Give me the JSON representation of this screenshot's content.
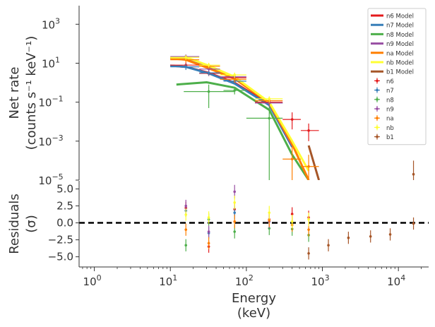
{
  "chart_data": {
    "type": "scatter",
    "x_log": true,
    "xlim": [
      0.63,
      25000
    ],
    "xlabel_line1": "Energy",
    "xlabel_line2": "(keV)",
    "x_ticks": [
      {
        "value": 1,
        "base": "10",
        "exp": "0"
      },
      {
        "value": 10,
        "base": "10",
        "exp": "1"
      },
      {
        "value": 100,
        "base": "10",
        "exp": "2"
      },
      {
        "value": 1000,
        "base": "10",
        "exp": "3"
      },
      {
        "value": 10000,
        "base": "10",
        "exp": "4"
      }
    ],
    "top_panel": {
      "y_log": true,
      "ylim": [
        1e-05,
        9000
      ],
      "ylabel_line1": "Net rate",
      "ylabel_line2": "(counts s⁻¹ keV⁻¹)",
      "y_ticks": [
        {
          "value": 1000,
          "base": "10",
          "exp": "3"
        },
        {
          "value": 10,
          "base": "10",
          "exp": "1"
        },
        {
          "value": 0.1,
          "base": "10",
          "exp": "−1"
        },
        {
          "value": 0.001,
          "base": "10",
          "exp": "−3"
        },
        {
          "value": 1e-05,
          "base": "10",
          "exp": "−5"
        }
      ],
      "legend_position": "top-right",
      "models": [
        {
          "name": "n6 Model",
          "color": "#e41a1c",
          "x": [
            10,
            16,
            32,
            70,
            200,
            400
          ],
          "y": [
            7.5,
            6.5,
            3.2,
            1.0,
            0.08,
            0.0006
          ]
        },
        {
          "name": "n7 Model",
          "color": "#377eb8",
          "x": [
            10,
            16,
            32,
            70,
            200,
            400
          ],
          "y": [
            7.5,
            6.5,
            3.0,
            0.9,
            0.07,
            0.0005
          ]
        },
        {
          "name": "n8 Model",
          "color": "#4daf4a",
          "x": [
            12,
            30,
            70,
            200,
            400,
            660
          ],
          "y": [
            0.8,
            1.05,
            0.55,
            0.04,
            0.0002,
            1e-05
          ]
        },
        {
          "name": "n9 Model",
          "color": "#984ea3",
          "x": [
            10,
            16,
            32,
            70,
            200,
            400
          ],
          "y": [
            18,
            16,
            6.5,
            1.7,
            0.09,
            0.0006
          ]
        },
        {
          "name": "na Model",
          "color": "#ff7f00",
          "x": [
            10,
            16,
            32,
            70,
            200,
            400,
            660
          ],
          "y": [
            18,
            15,
            5.5,
            1.6,
            0.09,
            0.0007,
            1e-05
          ]
        },
        {
          "name": "nb Model",
          "color": "#ffff33",
          "x": [
            10,
            16,
            32,
            70,
            200,
            400,
            660
          ],
          "y": [
            20,
            20,
            7.5,
            2.0,
            0.1,
            0.001,
            3e-05
          ]
        },
        {
          "name": "b1 Model",
          "color": "#a65628",
          "x": [
            660,
            900
          ],
          "y": [
            0.0006,
            1e-05
          ]
        }
      ],
      "data": [
        {
          "name": "n6",
          "color": "#e41a1c",
          "points": [
            {
              "x": 16,
              "xl": 10,
              "xh": 24,
              "y": 8.0,
              "yl": 5.5,
              "yh": 11
            },
            {
              "x": 32,
              "xl": 24,
              "xh": 45,
              "y": 3.0,
              "yl": 2.2,
              "yh": 4.0
            },
            {
              "x": 70,
              "xl": 50,
              "xh": 100,
              "y": 1.8,
              "yl": 1.2,
              "yh": 2.5
            },
            {
              "x": 200,
              "xl": 130,
              "xh": 300,
              "y": 0.1,
              "yl": 0.07,
              "yh": 0.14
            },
            {
              "x": 400,
              "xl": 300,
              "xh": 520,
              "y": 0.013,
              "yl": 0.004,
              "yh": 0.03
            },
            {
              "x": 660,
              "xl": 520,
              "xh": 900,
              "y": 0.0035,
              "yl": 0.001,
              "yh": 0.008
            }
          ]
        },
        {
          "name": "n7",
          "color": "#377eb8",
          "points": [
            {
              "x": 16,
              "xl": 10,
              "xh": 24,
              "y": 6.5,
              "yl": 4.5,
              "yh": 9
            },
            {
              "x": 32,
              "xl": 24,
              "xh": 45,
              "y": 3.2,
              "yl": 2.3,
              "yh": 4.3
            },
            {
              "x": 70,
              "xl": 50,
              "xh": 100,
              "y": 1.2,
              "yl": 0.8,
              "yh": 1.7
            },
            {
              "x": 200,
              "xl": 130,
              "xh": 300,
              "y": 0.09,
              "yl": 0.06,
              "yh": 0.13
            }
          ]
        },
        {
          "name": "n8",
          "color": "#4daf4a",
          "points": [
            {
              "x": 32,
              "xl": 15,
              "xh": 70,
              "y": 0.35,
              "yl": 0.05,
              "yh": 0.8
            },
            {
              "x": 70,
              "xl": 50,
              "xh": 100,
              "y": 0.4,
              "yl": 0.25,
              "yh": 0.6
            },
            {
              "x": 200,
              "xl": 100,
              "xh": 300,
              "y": 0.015,
              "yl": 1e-05,
              "yh": 0.06
            }
          ]
        },
        {
          "name": "n9",
          "color": "#984ea3",
          "points": [
            {
              "x": 16,
              "xl": 10,
              "xh": 24,
              "y": 22,
              "yl": 17,
              "yh": 28
            },
            {
              "x": 32,
              "xl": 24,
              "xh": 45,
              "y": 5.0,
              "yl": 3.8,
              "yh": 6.5
            },
            {
              "x": 70,
              "xl": 45,
              "xh": 100,
              "y": 2.0,
              "yl": 1.4,
              "yh": 2.8
            },
            {
              "x": 200,
              "xl": 130,
              "xh": 300,
              "y": 0.09,
              "yl": 0.06,
              "yh": 0.13
            }
          ]
        },
        {
          "name": "na",
          "color": "#ff7f00",
          "points": [
            {
              "x": 16,
              "xl": 10,
              "xh": 24,
              "y": 15,
              "yl": 11,
              "yh": 20
            },
            {
              "x": 32,
              "xl": 24,
              "xh": 45,
              "y": 7.0,
              "yl": 5.0,
              "yh": 9.5
            },
            {
              "x": 70,
              "xl": 45,
              "xh": 100,
              "y": 1.5,
              "yl": 1.0,
              "yh": 2.2
            },
            {
              "x": 200,
              "xl": 130,
              "xh": 300,
              "y": 0.12,
              "yl": 0.08,
              "yh": 0.17
            },
            {
              "x": 400,
              "xl": 300,
              "xh": 520,
              "y": 0.00012,
              "yl": 1e-05,
              "yh": 0.0005
            },
            {
              "x": 660,
              "xl": 520,
              "xh": 900,
              "y": 5e-05,
              "yl": 1e-05,
              "yh": 0.0002
            }
          ]
        },
        {
          "name": "nb",
          "color": "#ffff33",
          "points": [
            {
              "x": 16,
              "xl": 10,
              "xh": 24,
              "y": 20,
              "yl": 15,
              "yh": 26
            },
            {
              "x": 32,
              "xl": 24,
              "xh": 45,
              "y": 8.0,
              "yl": 6.0,
              "yh": 10.5
            },
            {
              "x": 70,
              "xl": 45,
              "xh": 100,
              "y": 2.5,
              "yl": 1.8,
              "yh": 3.3
            },
            {
              "x": 200,
              "xl": 130,
              "xh": 300,
              "y": 0.15,
              "yl": 0.1,
              "yh": 0.2
            }
          ]
        },
        {
          "name": "b1",
          "color": "#a65628",
          "points": [
            {
              "x": 15800,
              "xl": 15800,
              "xh": 15800,
              "y": 2e-05,
              "yl": 1e-05,
              "yh": 0.0001
            }
          ]
        }
      ]
    },
    "bottom_panel": {
      "ylim": [
        -6.5,
        6.2
      ],
      "ylabel_line1": "Residuals",
      "ylabel_line2": "(σ)",
      "y_ticks": [
        {
          "value": 5.0,
          "label": "5.0"
        },
        {
          "value": 2.5,
          "label": "2.5"
        },
        {
          "value": 0.0,
          "label": "0.0"
        },
        {
          "value": -2.5,
          "label": "−2.5"
        },
        {
          "value": -5.0,
          "label": "−5.0"
        }
      ],
      "zero_line": 0,
      "residuals": [
        {
          "name": "n6",
          "color": "#e41a1c",
          "points": [
            {
              "x": 16,
              "y": 2.2,
              "e": 0.9
            },
            {
              "x": 32,
              "y": -3.5,
              "e": 0.9
            },
            {
              "x": 70,
              "y": 2.0,
              "e": 1.0
            },
            {
              "x": 200,
              "y": 0.5,
              "e": 1.0
            },
            {
              "x": 400,
              "y": 1.3,
              "e": 1.0
            },
            {
              "x": 660,
              "y": 0.8,
              "e": 1.0
            }
          ]
        },
        {
          "name": "n7",
          "color": "#377eb8",
          "points": [
            {
              "x": 16,
              "y": 1.8,
              "e": 0.9
            },
            {
              "x": 32,
              "y": -1.5,
              "e": 0.9
            },
            {
              "x": 70,
              "y": 1.5,
              "e": 1.0
            },
            {
              "x": 200,
              "y": 0.3,
              "e": 1.0
            }
          ]
        },
        {
          "name": "n8",
          "color": "#4daf4a",
          "points": [
            {
              "x": 16,
              "y": -3.3,
              "e": 0.9
            },
            {
              "x": 32,
              "y": 0.5,
              "e": 0.9
            },
            {
              "x": 70,
              "y": -1.3,
              "e": 1.0
            },
            {
              "x": 200,
              "y": -0.8,
              "e": 1.0
            },
            {
              "x": 400,
              "y": -0.9,
              "e": 1.0
            },
            {
              "x": 660,
              "y": -1.8,
              "e": 1.0
            }
          ]
        },
        {
          "name": "n9",
          "color": "#984ea3",
          "points": [
            {
              "x": 16,
              "y": 2.5,
              "e": 0.9
            },
            {
              "x": 32,
              "y": -1.3,
              "e": 0.9
            },
            {
              "x": 70,
              "y": 4.6,
              "e": 1.0
            },
            {
              "x": 200,
              "y": 0.2,
              "e": 1.0
            }
          ]
        },
        {
          "name": "na",
          "color": "#ff7f00",
          "points": [
            {
              "x": 16,
              "y": -1.0,
              "e": 0.9
            },
            {
              "x": 32,
              "y": -3.0,
              "e": 0.9
            },
            {
              "x": 70,
              "y": 0.2,
              "e": 1.0
            },
            {
              "x": 200,
              "y": 0.4,
              "e": 1.0
            },
            {
              "x": 400,
              "y": -0.3,
              "e": 1.0
            },
            {
              "x": 660,
              "y": -1.0,
              "e": 1.0
            }
          ]
        },
        {
          "name": "nb",
          "color": "#ffff33",
          "points": [
            {
              "x": 16,
              "y": 1.2,
              "e": 0.9
            },
            {
              "x": 32,
              "y": 0.8,
              "e": 0.9
            },
            {
              "x": 70,
              "y": 3.0,
              "e": 1.0
            },
            {
              "x": 200,
              "y": 1.5,
              "e": 1.0
            },
            {
              "x": 400,
              "y": 0.2,
              "e": 1.0
            },
            {
              "x": 660,
              "y": 0.5,
              "e": 1.0
            }
          ]
        },
        {
          "name": "b1",
          "color": "#a65628",
          "points": [
            {
              "x": 660,
              "y": -4.5,
              "e": 0.9
            },
            {
              "x": 1200,
              "y": -3.3,
              "e": 0.9
            },
            {
              "x": 2200,
              "y": -2.2,
              "e": 0.9
            },
            {
              "x": 4300,
              "y": -2.0,
              "e": 0.9
            },
            {
              "x": 7800,
              "y": -1.7,
              "e": 0.9
            },
            {
              "x": 15800,
              "y": -0.1,
              "e": 0.9
            }
          ]
        }
      ]
    }
  }
}
